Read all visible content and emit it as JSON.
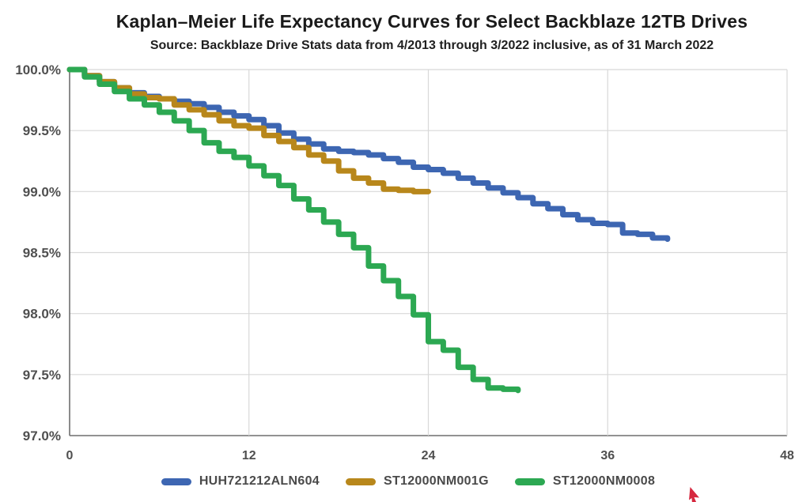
{
  "header": {
    "title": "Kaplan–Meier Life Expectancy Curves for Select Backblaze 12TB Drives",
    "subtitle": "Source: Backblaze Drive Stats data from 4/2013 through 3/2022 inclusive, as of 31 March 2022"
  },
  "chart_data": {
    "type": "line",
    "line_style": "step-after",
    "title": "Kaplan–Meier Life Expectancy Curves for Select Backblaze 12TB Drives",
    "subtitle": "Source: Backblaze Drive Stats data from 4/2013 through 3/2022 inclusive, as of 31 March 2022",
    "xlabel": "",
    "ylabel": "",
    "grid": true,
    "legend_position": "bottom",
    "x_axis": {
      "min": 0,
      "max": 48,
      "ticks": [
        0,
        12,
        24,
        36,
        48
      ],
      "unit": "months"
    },
    "y_axis": {
      "min": 97.0,
      "max": 100.0,
      "tick_step": 0.5,
      "tick_labels": [
        "100.0%",
        "99.5%",
        "99.0%",
        "98.5%",
        "98.0%",
        "97.5%",
        "97.0%"
      ],
      "format": "percent_one_decimal"
    },
    "series": [
      {
        "name": "HUH721212ALN604",
        "color": "#3D66B2",
        "start_month": 0,
        "month_step": 1,
        "values": [
          100.0,
          99.95,
          99.9,
          99.85,
          99.81,
          99.78,
          99.76,
          99.74,
          99.72,
          99.69,
          99.65,
          99.62,
          99.59,
          99.54,
          99.48,
          99.43,
          99.39,
          99.35,
          99.33,
          99.32,
          99.3,
          99.27,
          99.24,
          99.2,
          99.18,
          99.15,
          99.11,
          99.07,
          99.03,
          98.99,
          98.95,
          98.9,
          98.86,
          98.81,
          98.77,
          98.74,
          98.73,
          98.66,
          98.65,
          98.62,
          98.61
        ]
      },
      {
        "name": "ST12000NM001G",
        "color": "#B8871B",
        "start_month": 0,
        "month_step": 1,
        "values": [
          100.0,
          99.95,
          99.9,
          99.85,
          99.8,
          99.77,
          99.76,
          99.71,
          99.67,
          99.63,
          99.58,
          99.54,
          99.52,
          99.46,
          99.41,
          99.36,
          99.3,
          99.25,
          99.17,
          99.11,
          99.07,
          99.02,
          99.01,
          99.0,
          99.0
        ]
      },
      {
        "name": "ST12000NM0008",
        "color": "#2CA852",
        "start_month": 0,
        "month_step": 1,
        "values": [
          100.0,
          99.94,
          99.88,
          99.82,
          99.76,
          99.71,
          99.65,
          99.58,
          99.5,
          99.4,
          99.33,
          99.28,
          99.21,
          99.13,
          99.05,
          98.94,
          98.85,
          98.75,
          98.65,
          98.54,
          98.39,
          98.27,
          98.14,
          97.99,
          97.77,
          97.7,
          97.56,
          97.46,
          97.39,
          97.38,
          97.37
        ]
      }
    ]
  },
  "colors": {
    "grid_line": "#d8d8d8",
    "axis_line": "#6e6e6e",
    "tick_text": "#4f4f4f",
    "title_text": "#1a1a1a",
    "cursor": "#d6283f"
  },
  "cursor": {
    "type": "mouse-pointer",
    "color": "#d6283f"
  }
}
